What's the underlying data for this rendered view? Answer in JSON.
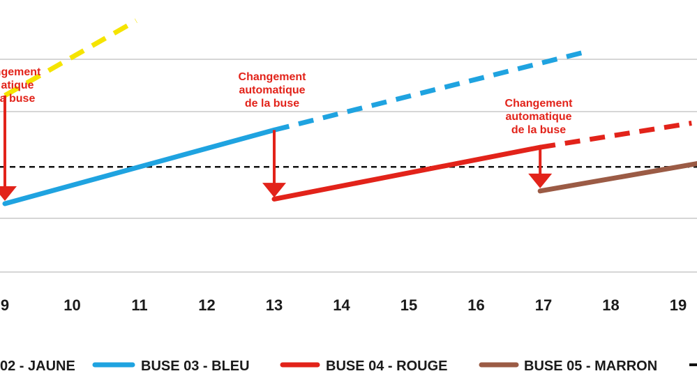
{
  "chart_data": {
    "type": "line",
    "x_ticks": [
      "9",
      "10",
      "11",
      "12",
      "13",
      "14",
      "15",
      "16",
      "17",
      "18",
      "19"
    ],
    "xlim": [
      9,
      19.3
    ],
    "grid": true,
    "series": [
      {
        "name": "02 - JAUNE",
        "color": "#f5e400",
        "solid": [],
        "dashed": [
          [
            9.0,
            0.94
          ],
          [
            10.95,
            1.59
          ]
        ]
      },
      {
        "name": "BUSE 03 - BLEU",
        "color": "#1fa3e0",
        "solid": [
          [
            9.0,
            0.0
          ],
          [
            13.0,
            0.64
          ]
        ],
        "dashed": [
          [
            13.0,
            0.64
          ],
          [
            17.7,
            1.33
          ]
        ]
      },
      {
        "name": "BUSE 04 - ROUGE",
        "color": "#e2231a",
        "solid": [
          [
            13.0,
            0.04
          ],
          [
            16.95,
            0.49
          ]
        ],
        "dashed": [
          [
            16.95,
            0.49
          ],
          [
            19.2,
            0.7
          ]
        ]
      },
      {
        "name": "BUSE 05 - MARRON",
        "color": "#9b5b45",
        "solid": [
          [
            16.95,
            0.11
          ],
          [
            19.3,
            0.35
          ]
        ],
        "dashed": []
      }
    ],
    "threshold": {
      "y": 0.32
    },
    "transitions": [
      {
        "x": 9.0,
        "from": 0.94,
        "to": 0.03
      },
      {
        "x": 13.0,
        "from": 0.64,
        "to": 0.06
      },
      {
        "x": 16.95,
        "from": 0.49,
        "to": 0.14
      }
    ],
    "annotations": [
      {
        "lines": [
          "ngement",
          "atique",
          "a buse"
        ]
      },
      {
        "lines": [
          "Changement",
          "automatique",
          "de la buse"
        ]
      },
      {
        "lines": [
          "Changement",
          "automatique",
          "de la buse"
        ]
      }
    ],
    "legend": [
      "02 - JAUNE",
      "BUSE 03 - BLEU",
      "BUSE 04 - ROUGE",
      "BUSE 05 - MARRON"
    ]
  }
}
